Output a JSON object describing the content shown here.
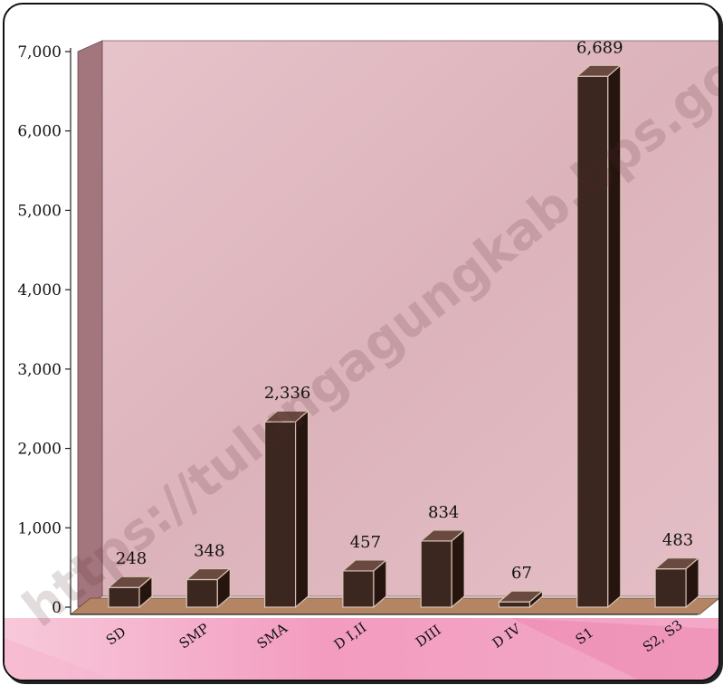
{
  "chart_data": {
    "type": "bar",
    "title": "",
    "xlabel": "",
    "ylabel": "",
    "categories": [
      "SD",
      "SMP",
      "SMA",
      "D I,II",
      "DIII",
      "D IV",
      "S1",
      "S2, S3"
    ],
    "values": [
      248,
      348,
      2336,
      457,
      834,
      67,
      6689,
      483
    ],
    "value_labels": [
      "248",
      "348",
      "2,336",
      "457",
      "834",
      "67",
      "6,689",
      "483"
    ],
    "ylim": [
      0,
      7000
    ],
    "yticks": [
      0,
      1000,
      2000,
      3000,
      4000,
      5000,
      6000,
      7000
    ],
    "ytick_labels": [
      "0",
      "1,000",
      "2,000",
      "3,000",
      "4,000",
      "5,000",
      "6,000",
      "7,000"
    ],
    "grid": false,
    "legend": "none",
    "style": "3d-column"
  },
  "watermark": "https://tulungagungkab.bps.go.id",
  "colors": {
    "wall": "#e3bcc4",
    "side_wall": "#a3757d",
    "floor": "#b38565",
    "bar_front": "#3c2620",
    "bar_top": "#6a4a40",
    "bar_side": "#26140f",
    "label_band": "#ef8fb7"
  }
}
